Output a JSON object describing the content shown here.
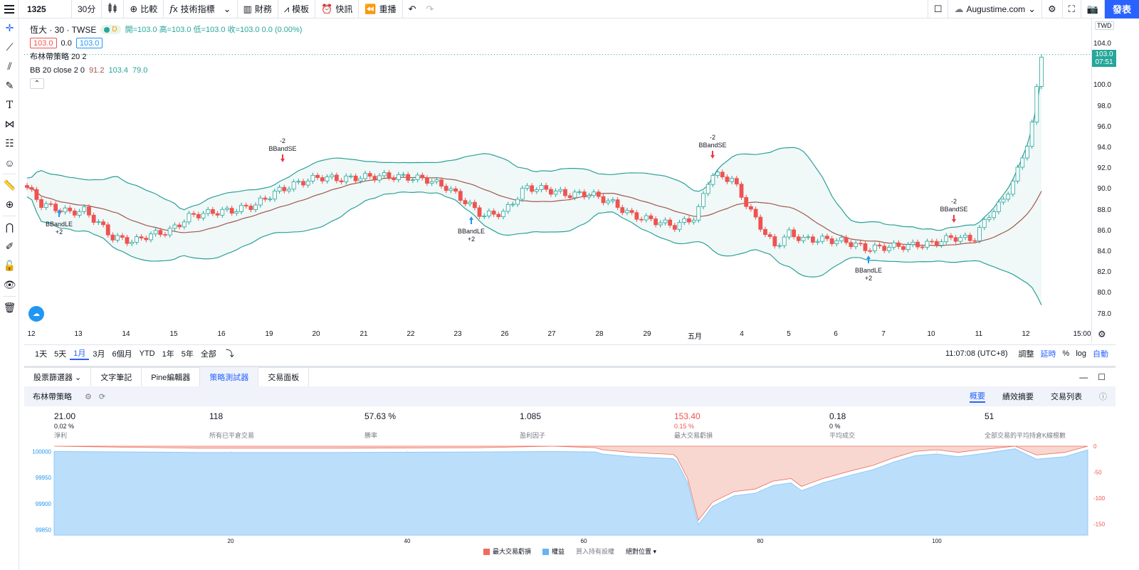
{
  "toolbar": {
    "symbol": "1325",
    "interval": "30分",
    "compare": "比較",
    "indicators": "技術指標",
    "financials": "財務",
    "templates": "模板",
    "alerts": "快訊",
    "replay": "重播",
    "account": "Augustime.com",
    "publish": "發表"
  },
  "legend": {
    "title": "恆大 · 30 · TWSE",
    "badge": "D",
    "ohlc": "開=103.0 高=103.0 低=103.0 收=103.0 0.0 (0.00%)",
    "bid": "103.0",
    "spread": "0.0",
    "ask": "103.0",
    "strategy": "布林帶策略 20 2",
    "bb_label": "BB 20 close 2 0",
    "bb_mid": "91.2",
    "bb_up": "103.4",
    "bb_low": "79.0"
  },
  "price_axis": {
    "currency": "TWD",
    "labels": [
      "104.0",
      "102.0",
      "100.0",
      "98.0",
      "96.0",
      "94.0",
      "92.0",
      "90.0",
      "88.0",
      "86.0",
      "84.0",
      "82.0",
      "80.0",
      "78.0"
    ],
    "current_price": "103.0",
    "current_time": "07:51"
  },
  "time_axis": [
    "12",
    "13",
    "14",
    "15",
    "16",
    "19",
    "20",
    "21",
    "22",
    "23",
    "26",
    "27",
    "28",
    "29",
    "五月",
    "4",
    "5",
    "6",
    "7",
    "10",
    "11",
    "12",
    "15:00"
  ],
  "signals": [
    {
      "text": "BBandLE",
      "qty": "+2"
    },
    {
      "text": "BBandSE",
      "qty": "-2"
    },
    {
      "text": "BBandLE",
      "qty": "+2"
    },
    {
      "text": "BBandSE",
      "qty": "-2"
    },
    {
      "text": "BBandLE",
      "qty": "+2"
    },
    {
      "text": "BBandSE",
      "qty": "-2"
    }
  ],
  "range": {
    "buttons": [
      "1天",
      "5天",
      "1月",
      "3月",
      "6個月",
      "YTD",
      "1年",
      "5年",
      "全部"
    ],
    "active": "1月",
    "clock": "11:07:08 (UTC+8)",
    "adjust": "調整",
    "extended": "延時",
    "percent": "%",
    "log": "log",
    "auto": "自動"
  },
  "panel": {
    "tabs": [
      "股票篩選器",
      "文字筆記",
      "Pine編輯器",
      "策略測試器",
      "交易面板"
    ],
    "active_tab": "策略測試器",
    "strategy_name": "布林帶策略",
    "subtabs": [
      "概要",
      "績效摘要",
      "交易列表"
    ],
    "active_subtab": "概要"
  },
  "stats": [
    {
      "value": "21.00",
      "pct": "0.02 %",
      "label": "淨利",
      "red": false
    },
    {
      "value": "118",
      "pct": "",
      "label": "所有已平倉交易",
      "red": false
    },
    {
      "value": "57.63 %",
      "pct": "",
      "label": "勝率",
      "red": false
    },
    {
      "value": "1.085",
      "pct": "",
      "label": "盈利因子",
      "red": false
    },
    {
      "value": "153.40",
      "pct": "0.15 %",
      "label": "最大交易虧損",
      "red": true
    },
    {
      "value": "0.18",
      "pct": "0 %",
      "label": "平均成交",
      "red": false
    },
    {
      "value": "51",
      "pct": "",
      "label": "全部交易的平均持倉K線根數",
      "red": false
    }
  ],
  "equity_axis": {
    "left": [
      "100000",
      "99950",
      "99900",
      "99850"
    ],
    "right": [
      "0",
      "-50",
      "-100",
      "-150"
    ],
    "x": [
      "20",
      "40",
      "60",
      "80",
      "100"
    ]
  },
  "equity_legend": {
    "drawdown": "最大交易虧損",
    "equity": "權益",
    "buyhold": "買入持有設權",
    "position": "絕對位置"
  },
  "colors": {
    "accent": "#2962ff",
    "up": "#26a69a",
    "down": "#ef5350",
    "bb_band": "#2aa198",
    "bb_mid": "#a1584c",
    "equity_fill": "#bbdefb",
    "drawdown_fill": "#f8d7d0"
  }
}
